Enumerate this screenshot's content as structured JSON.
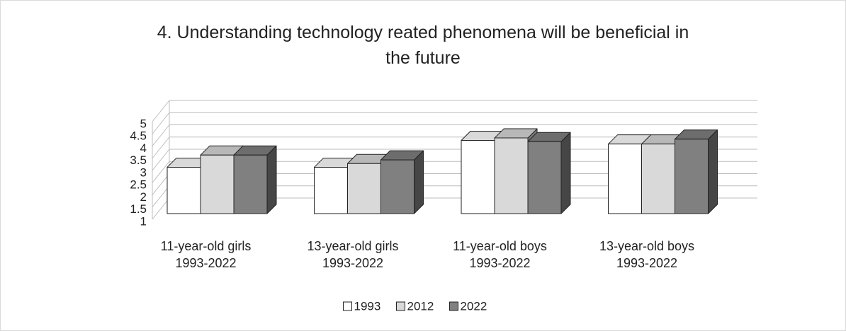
{
  "chart_data": {
    "type": "bar3d",
    "title": "4. Understanding technology reated phenomena will be beneficial in the future",
    "categories": [
      "11-year-old girls\n1993-2022",
      "13-year-old girls\n1993-2022",
      "11-year-old boys\n1993-2022",
      "13-year-old boys\n1993-2022"
    ],
    "series": [
      {
        "name": "1993",
        "color": "#ffffff",
        "values": [
          2.9,
          2.9,
          4.0,
          3.85
        ]
      },
      {
        "name": "2012",
        "color": "#d9d9d9",
        "values": [
          3.4,
          3.05,
          4.1,
          3.85
        ]
      },
      {
        "name": "2022",
        "color": "#808080",
        "values": [
          3.4,
          3.2,
          3.95,
          4.05
        ]
      }
    ],
    "ylim": [
      1,
      5
    ],
    "yticks": [
      1,
      1.5,
      2,
      2.5,
      3,
      3.5,
      4,
      4.5,
      5
    ],
    "grid": true,
    "legend": "bottom"
  }
}
